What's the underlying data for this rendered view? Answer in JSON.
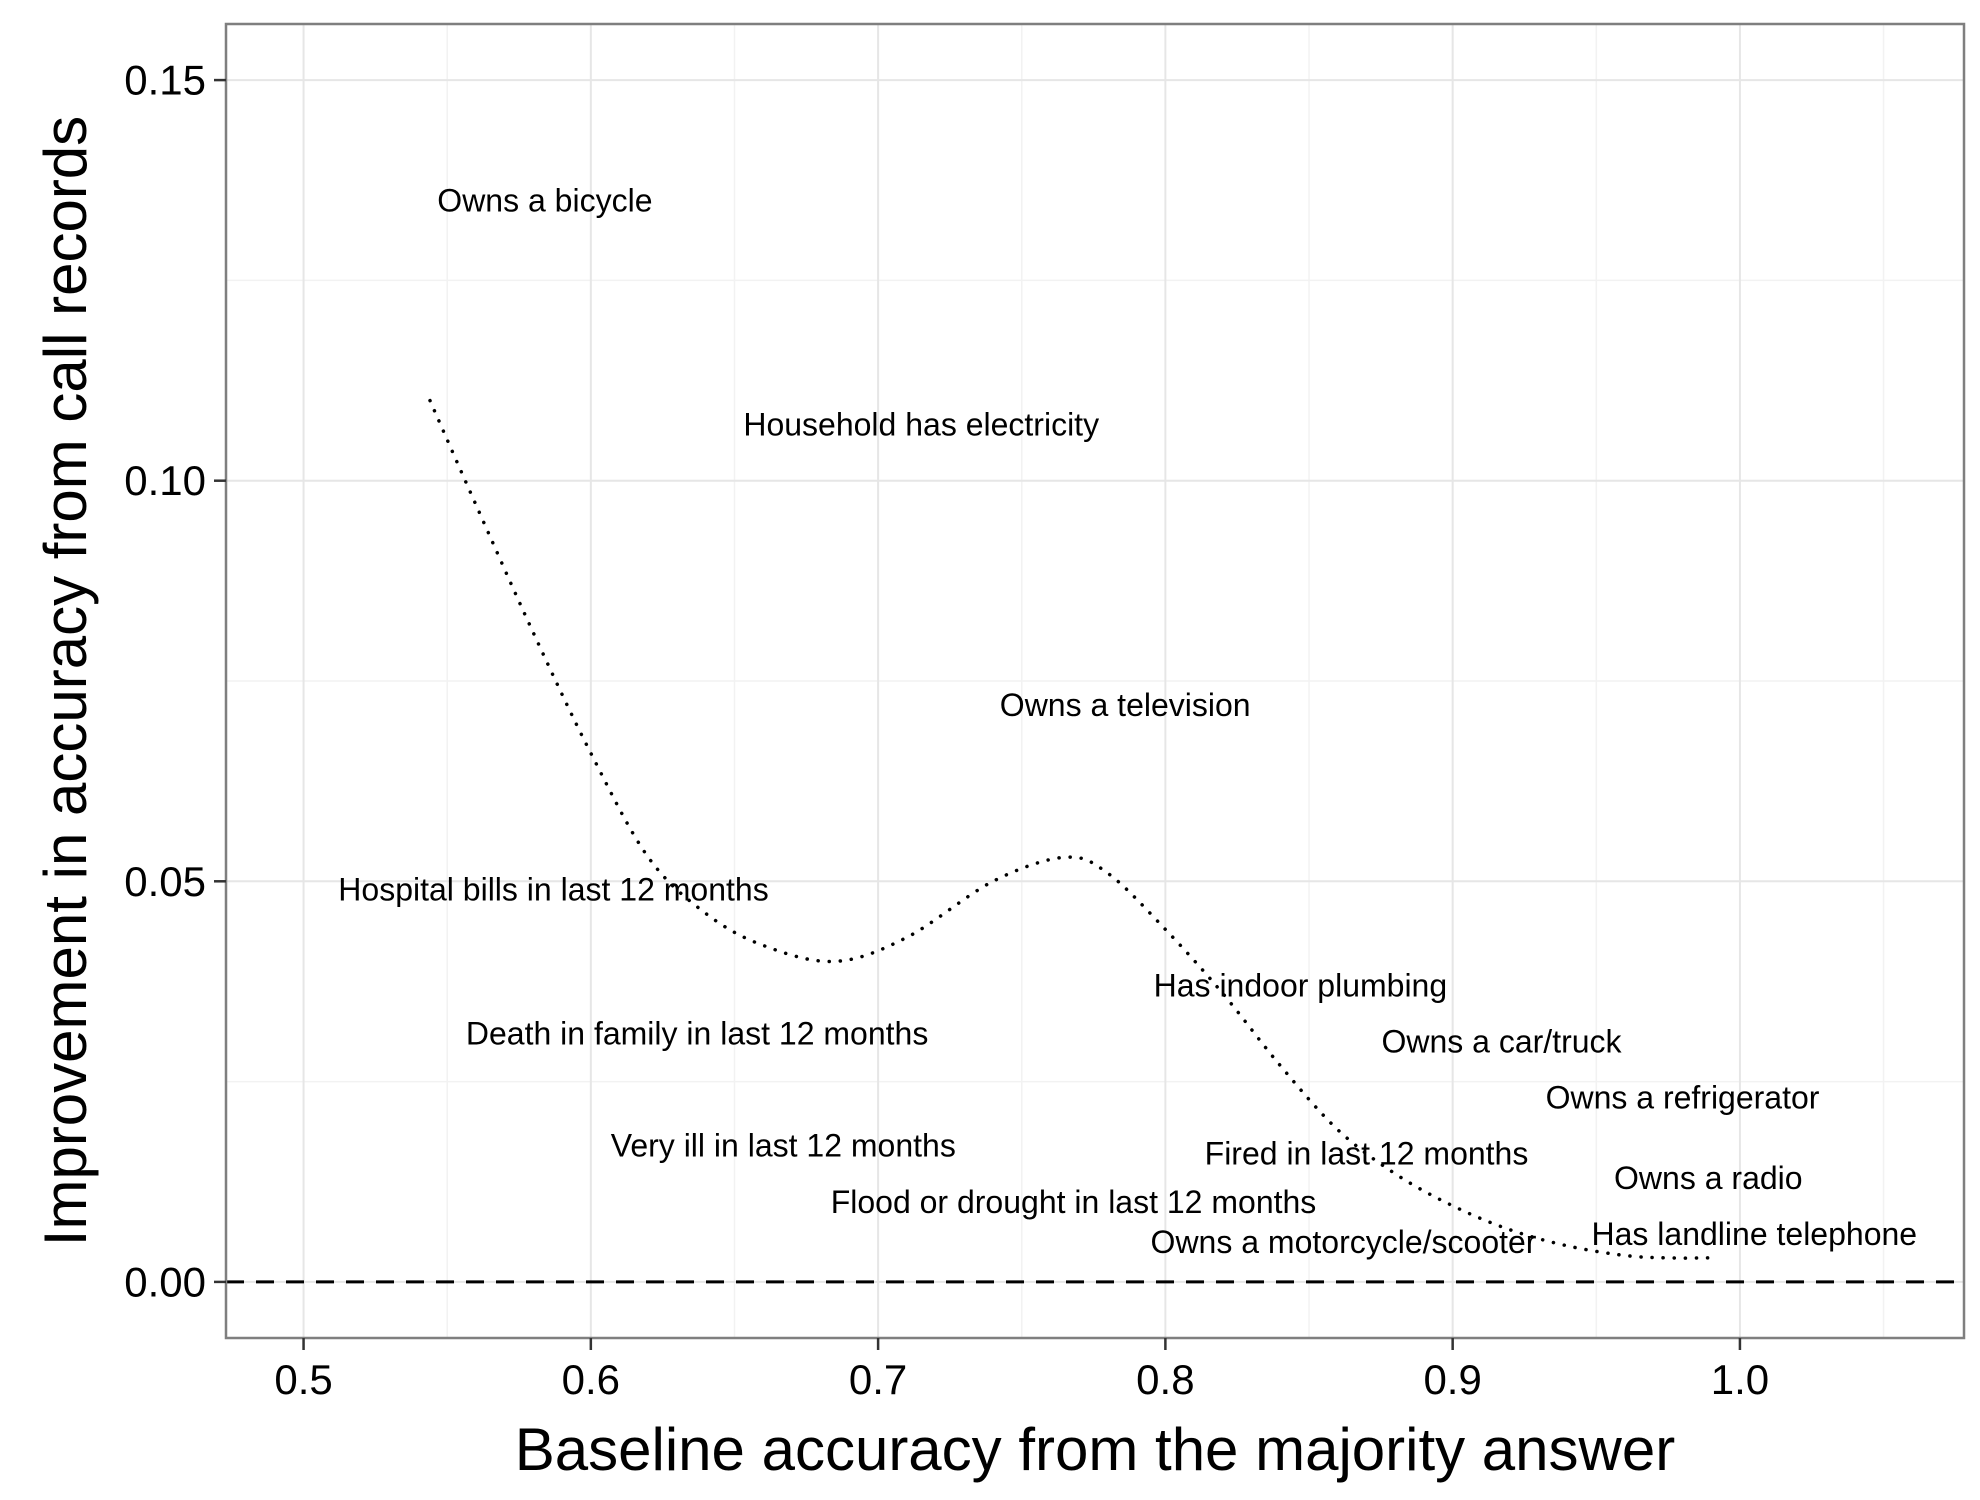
{
  "chart_data": {
    "type": "scatter",
    "title": "",
    "xlabel": "Baseline accuracy from the majority answer",
    "ylabel": "Improvement in accuracy from call records",
    "xlim": [
      0.473,
      1.078
    ],
    "ylim": [
      -0.007,
      0.157
    ],
    "x_ticks": [
      0.5,
      0.6,
      0.7,
      0.8,
      0.9,
      1.0
    ],
    "x_tick_labels": [
      "0.5",
      "0.6",
      "0.7",
      "0.8",
      "0.9",
      "1.0"
    ],
    "y_ticks": [
      0.0,
      0.05,
      0.1,
      0.15
    ],
    "y_tick_labels": [
      "0.00",
      "0.05",
      "0.10",
      "0.15"
    ],
    "grid": true,
    "reference_line": {
      "y": 0.0,
      "style": "dashed"
    },
    "points": [
      {
        "label": "Owns a bicycle",
        "x": 0.584,
        "y": 0.135
      },
      {
        "label": "Household has electricity",
        "x": 0.715,
        "y": 0.107
      },
      {
        "label": "Owns a television",
        "x": 0.786,
        "y": 0.072
      },
      {
        "label": "Hospital bills in last 12 months",
        "x": 0.587,
        "y": 0.049
      },
      {
        "label": "Has indoor plumbing",
        "x": 0.847,
        "y": 0.037
      },
      {
        "label": "Death in family in last 12 months",
        "x": 0.637,
        "y": 0.031
      },
      {
        "label": "Owns a car/truck",
        "x": 0.917,
        "y": 0.03
      },
      {
        "label": "Owns a refrigerator",
        "x": 0.98,
        "y": 0.023
      },
      {
        "label": "Very ill in last 12 months",
        "x": 0.667,
        "y": 0.017
      },
      {
        "label": "Fired in last 12 months",
        "x": 0.87,
        "y": 0.016
      },
      {
        "label": "Owns a radio",
        "x": 0.989,
        "y": 0.013
      },
      {
        "label": "Flood or drought in last 12 months",
        "x": 0.768,
        "y": 0.01
      },
      {
        "label": "Has landline telephone",
        "x": 1.005,
        "y": 0.006
      },
      {
        "label": "Owns a motorcycle/scooter",
        "x": 0.862,
        "y": 0.005
      }
    ],
    "trend_line": {
      "style": "dotted",
      "x": [
        0.544,
        0.56,
        0.58,
        0.6,
        0.62,
        0.64,
        0.66,
        0.685,
        0.71,
        0.74,
        0.765,
        0.78,
        0.8,
        0.82,
        0.84,
        0.86,
        0.88,
        0.9,
        0.92,
        0.94,
        0.96,
        0.975,
        0.99
      ],
      "y": [
        0.11,
        0.097,
        0.081,
        0.066,
        0.053,
        0.046,
        0.042,
        0.04,
        0.043,
        0.05,
        0.053,
        0.051,
        0.044,
        0.036,
        0.027,
        0.019,
        0.0135,
        0.0095,
        0.0065,
        0.0045,
        0.0033,
        0.003,
        0.003
      ]
    }
  }
}
